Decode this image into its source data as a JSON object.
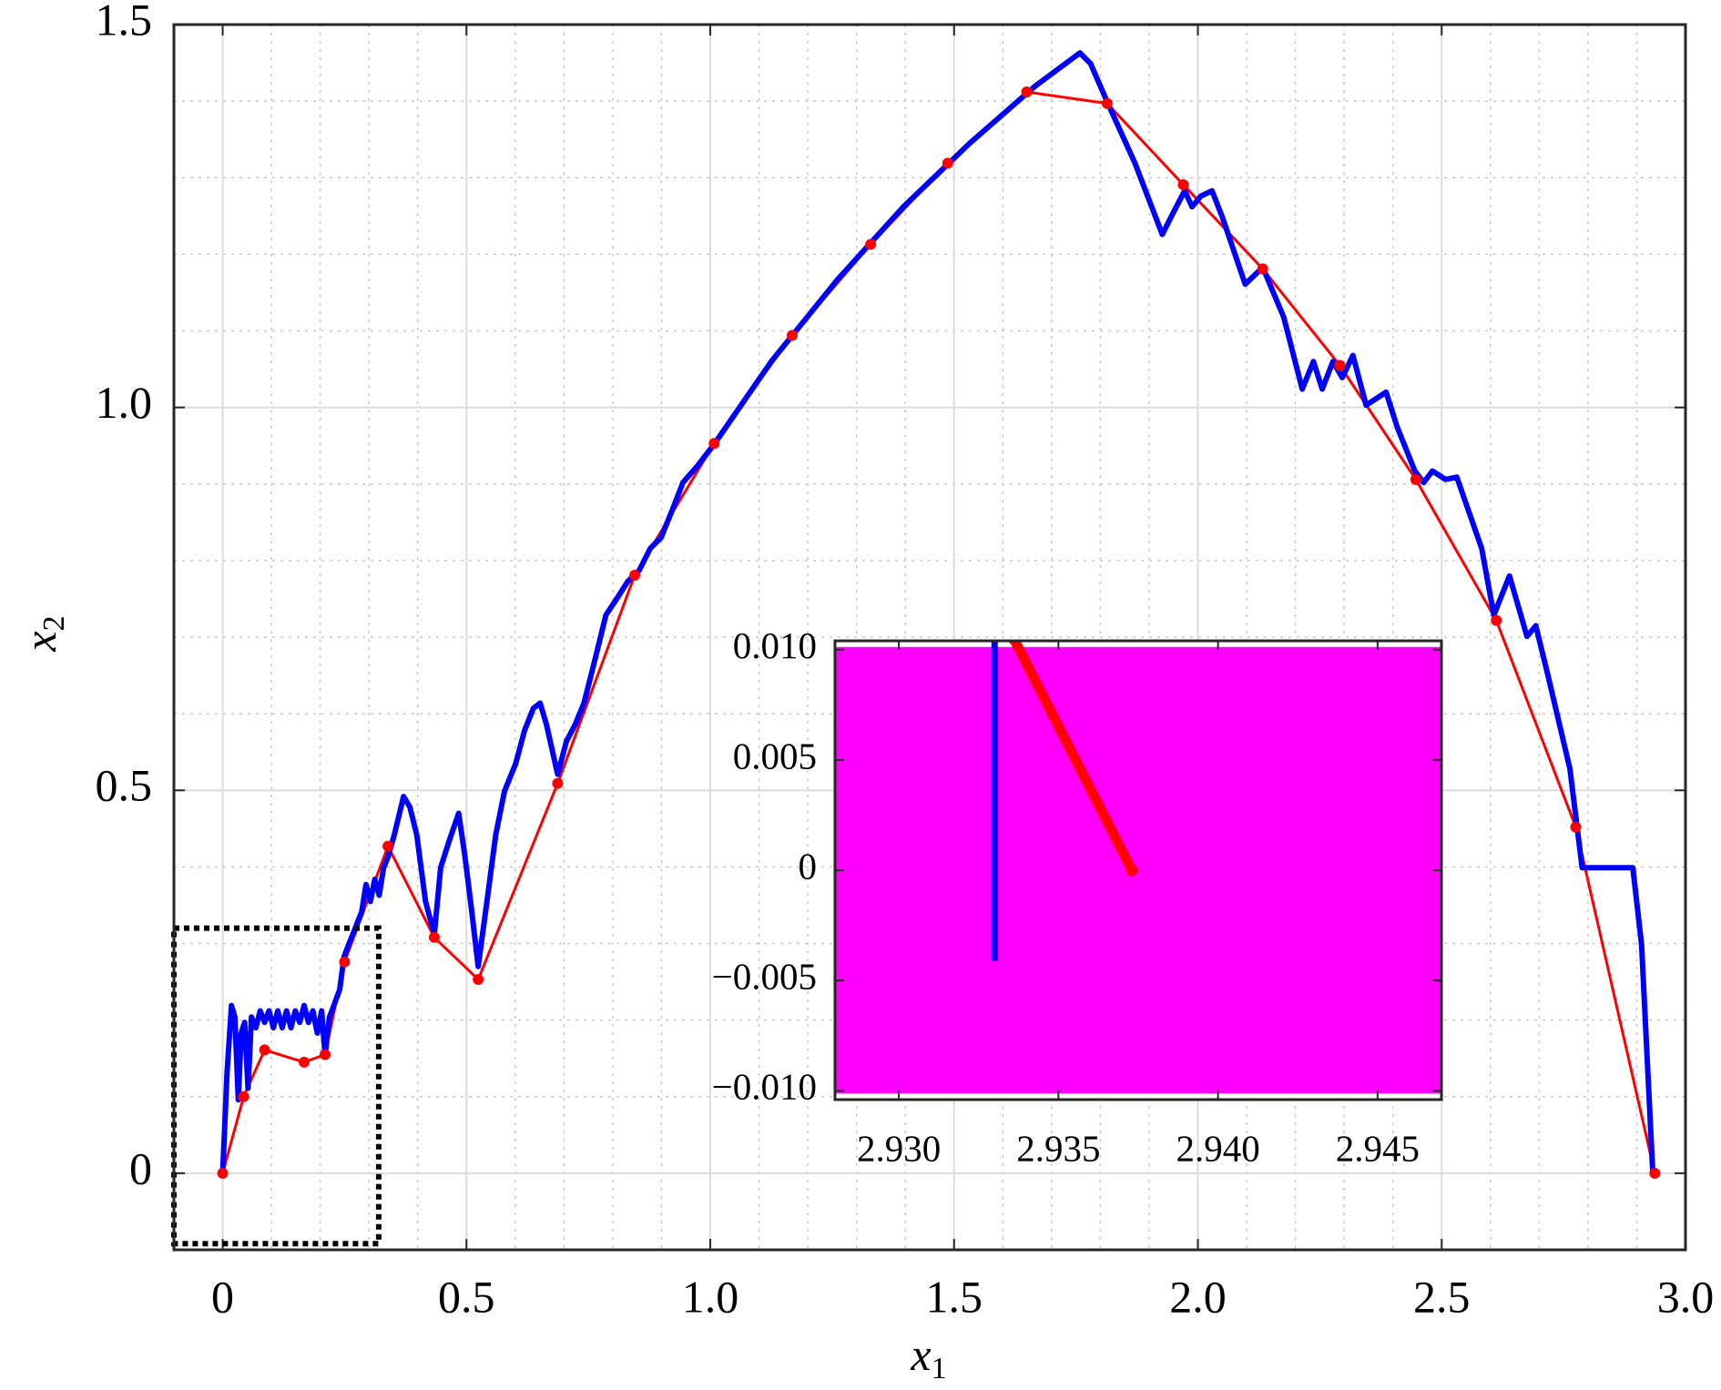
{
  "chart_data": [
    {
      "type": "line",
      "xlabel": {
        "base": "x",
        "sub": "1"
      },
      "ylabel": {
        "base": "x",
        "sub": "2"
      },
      "xlim": [
        -0.1,
        3.0
      ],
      "ylim": [
        -0.1,
        1.5
      ],
      "xticks": [
        0,
        0.5,
        {
          "value": 1,
          "label": "1.0"
        },
        1.5,
        {
          "value": 2,
          "label": "2.0"
        },
        2.5,
        {
          "value": 3,
          "label": "3.0"
        }
      ],
      "yticks": [
        0,
        0.5,
        {
          "value": 1,
          "label": "1.0"
        },
        1.5
      ],
      "grid": true,
      "minor_grid": true,
      "highlight_box": {
        "x": [
          -0.1,
          0.32
        ],
        "y": [
          -0.092,
          0.32
        ]
      },
      "series": [
        {
          "color": "#ff0000",
          "width": 3,
          "marker": true,
          "x": [
            0,
            0.043,
            0.086,
            0.167,
            0.21,
            0.25,
            0.339,
            0.434,
            0.524,
            0.687,
            0.845,
            1.008,
            1.168,
            1.329,
            1.487,
            1.649,
            1.814,
            1.97,
            2.133,
            2.291,
            2.447,
            2.612,
            2.775,
            2.937
          ],
          "values": [
            0,
            0.1,
            0.161,
            0.145,
            0.155,
            0.276,
            0.427,
            0.308,
            0.253,
            0.509,
            0.781,
            0.953,
            1.094,
            1.213,
            1.319,
            1.412,
            1.397,
            1.291,
            1.181,
            1.055,
            0.906,
            0.722,
            0.452,
            0
          ]
        },
        {
          "color": "#0000ff",
          "width": 6,
          "x": [
            0,
            0.009,
            0.018,
            0.025,
            0.032,
            0.038,
            0.045,
            0.052,
            0.059,
            0.068,
            0.077,
            0.086,
            0.095,
            0.104,
            0.113,
            0.122,
            0.131,
            0.14,
            0.149,
            0.158,
            0.167,
            0.176,
            0.185,
            0.194,
            0.203,
            0.21,
            0.219,
            0.228,
            0.24,
            0.249,
            0.258,
            0.267,
            0.276,
            0.285,
            0.294,
            0.303,
            0.312,
            0.321,
            0.33,
            0.339,
            0.352,
            0.371,
            0.384,
            0.398,
            0.416,
            0.434,
            0.447,
            0.465,
            0.484,
            0.497,
            0.511,
            0.524,
            0.542,
            0.56,
            0.578,
            0.601,
            0.619,
            0.637,
            0.651,
            0.664,
            0.687,
            0.705,
            0.723,
            0.741,
            0.764,
            0.786,
            0.809,
            0.831,
            0.854,
            0.877,
            0.899,
            0.922,
            0.944,
            0.974,
            1.008,
            1.125,
            1.261,
            1.396,
            1.532,
            1.667,
            1.758,
            1.78,
            1.814,
            1.871,
            1.927,
            1.95,
            1.973,
            1.988,
            2.006,
            2.029,
            2.051,
            2.097,
            2.133,
            2.176,
            2.214,
            2.237,
            2.255,
            2.277,
            2.296,
            2.318,
            2.345,
            2.386,
            2.409,
            2.445,
            2.463,
            2.481,
            2.508,
            2.531,
            2.582,
            2.607,
            2.639,
            2.675,
            2.693,
            2.718,
            2.763,
            2.788,
            2.82,
            2.865,
            2.892,
            2.91,
            2.933
          ],
          "values": [
            0,
            0.132,
            0.219,
            0.204,
            0.096,
            0.183,
            0.197,
            0.111,
            0.204,
            0.19,
            0.212,
            0.197,
            0.212,
            0.19,
            0.212,
            0.19,
            0.212,
            0.19,
            0.212,
            0.197,
            0.219,
            0.197,
            0.212,
            0.183,
            0.212,
            0.154,
            0.204,
            0.219,
            0.24,
            0.283,
            0.298,
            0.312,
            0.327,
            0.341,
            0.377,
            0.355,
            0.384,
            0.363,
            0.399,
            0.413,
            0.442,
            0.492,
            0.478,
            0.442,
            0.355,
            0.312,
            0.399,
            0.435,
            0.47,
            0.413,
            0.341,
            0.27,
            0.355,
            0.442,
            0.499,
            0.535,
            0.578,
            0.607,
            0.614,
            0.586,
            0.521,
            0.564,
            0.586,
            0.614,
            0.672,
            0.729,
            0.751,
            0.773,
            0.787,
            0.816,
            0.83,
            0.866,
            0.902,
            0.924,
            0.952,
            1.06,
            1.167,
            1.262,
            1.345,
            1.42,
            1.463,
            1.449,
            1.399,
            1.319,
            1.226,
            1.255,
            1.283,
            1.262,
            1.276,
            1.283,
            1.247,
            1.161,
            1.183,
            1.118,
            1.024,
            1.06,
            1.024,
            1.06,
            1.039,
            1.068,
            1.003,
            1.02,
            0.974,
            0.917,
            0.902,
            0.917,
            0.906,
            0.909,
            0.816,
            0.729,
            0.78,
            0.701,
            0.715,
            0.65,
            0.528,
            0.399,
            0.399,
            0.399,
            0.399,
            0.298,
            0
          ]
        }
      ]
    },
    {
      "type": "line",
      "xlim": [
        2.928,
        2.947
      ],
      "ylim": [
        -0.0104,
        0.0104
      ],
      "xticks": [
        {
          "value": 2.93,
          "label": "2.930"
        },
        {
          "value": 2.935,
          "label": "2.935"
        },
        {
          "value": 2.94,
          "label": "2.940"
        },
        {
          "value": 2.945,
          "label": "2.945"
        }
      ],
      "yticks": [
        {
          "value": 0.01,
          "label": "0.010"
        },
        {
          "value": 0.005,
          "label": "0.005"
        },
        0,
        {
          "value": -0.005,
          "label": "−0.005"
        },
        {
          "value": -0.01,
          "label": "−0.010"
        }
      ],
      "region": {
        "y": [
          -0.01,
          0.01
        ],
        "color": "#ff00ff"
      },
      "series": [
        {
          "color": "#0000ff",
          "width": 7,
          "x": [
            2.933,
            2.933
          ],
          "values": [
            0.0105,
            -0.0041
          ]
        },
        {
          "color": "#ff0000",
          "width": 11,
          "marker": true,
          "x": [
            2.9336,
            2.9373
          ],
          "values": [
            0.0105,
            0
          ]
        }
      ]
    }
  ]
}
